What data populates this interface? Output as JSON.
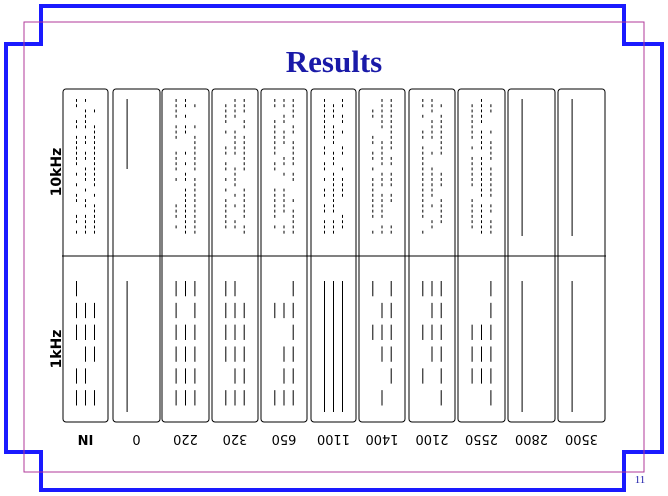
{
  "slide": {
    "title": "Results",
    "page_number": "11"
  },
  "rows": [
    {
      "label": "10kHz"
    },
    {
      "label": "1kHz"
    }
  ],
  "columns": [
    {
      "label": "IN"
    },
    {
      "label": "0"
    },
    {
      "label": "220"
    },
    {
      "label": "320"
    },
    {
      "label": "650"
    },
    {
      "label": "1100"
    },
    {
      "label": "1400"
    },
    {
      "label": "2100"
    },
    {
      "label": "2550"
    },
    {
      "label": "2800"
    },
    {
      "label": "3500"
    }
  ],
  "colors": {
    "frame_blue": "#1a1aff",
    "inner_frame": "#b03a9a",
    "title": "#1a1aa8"
  }
}
